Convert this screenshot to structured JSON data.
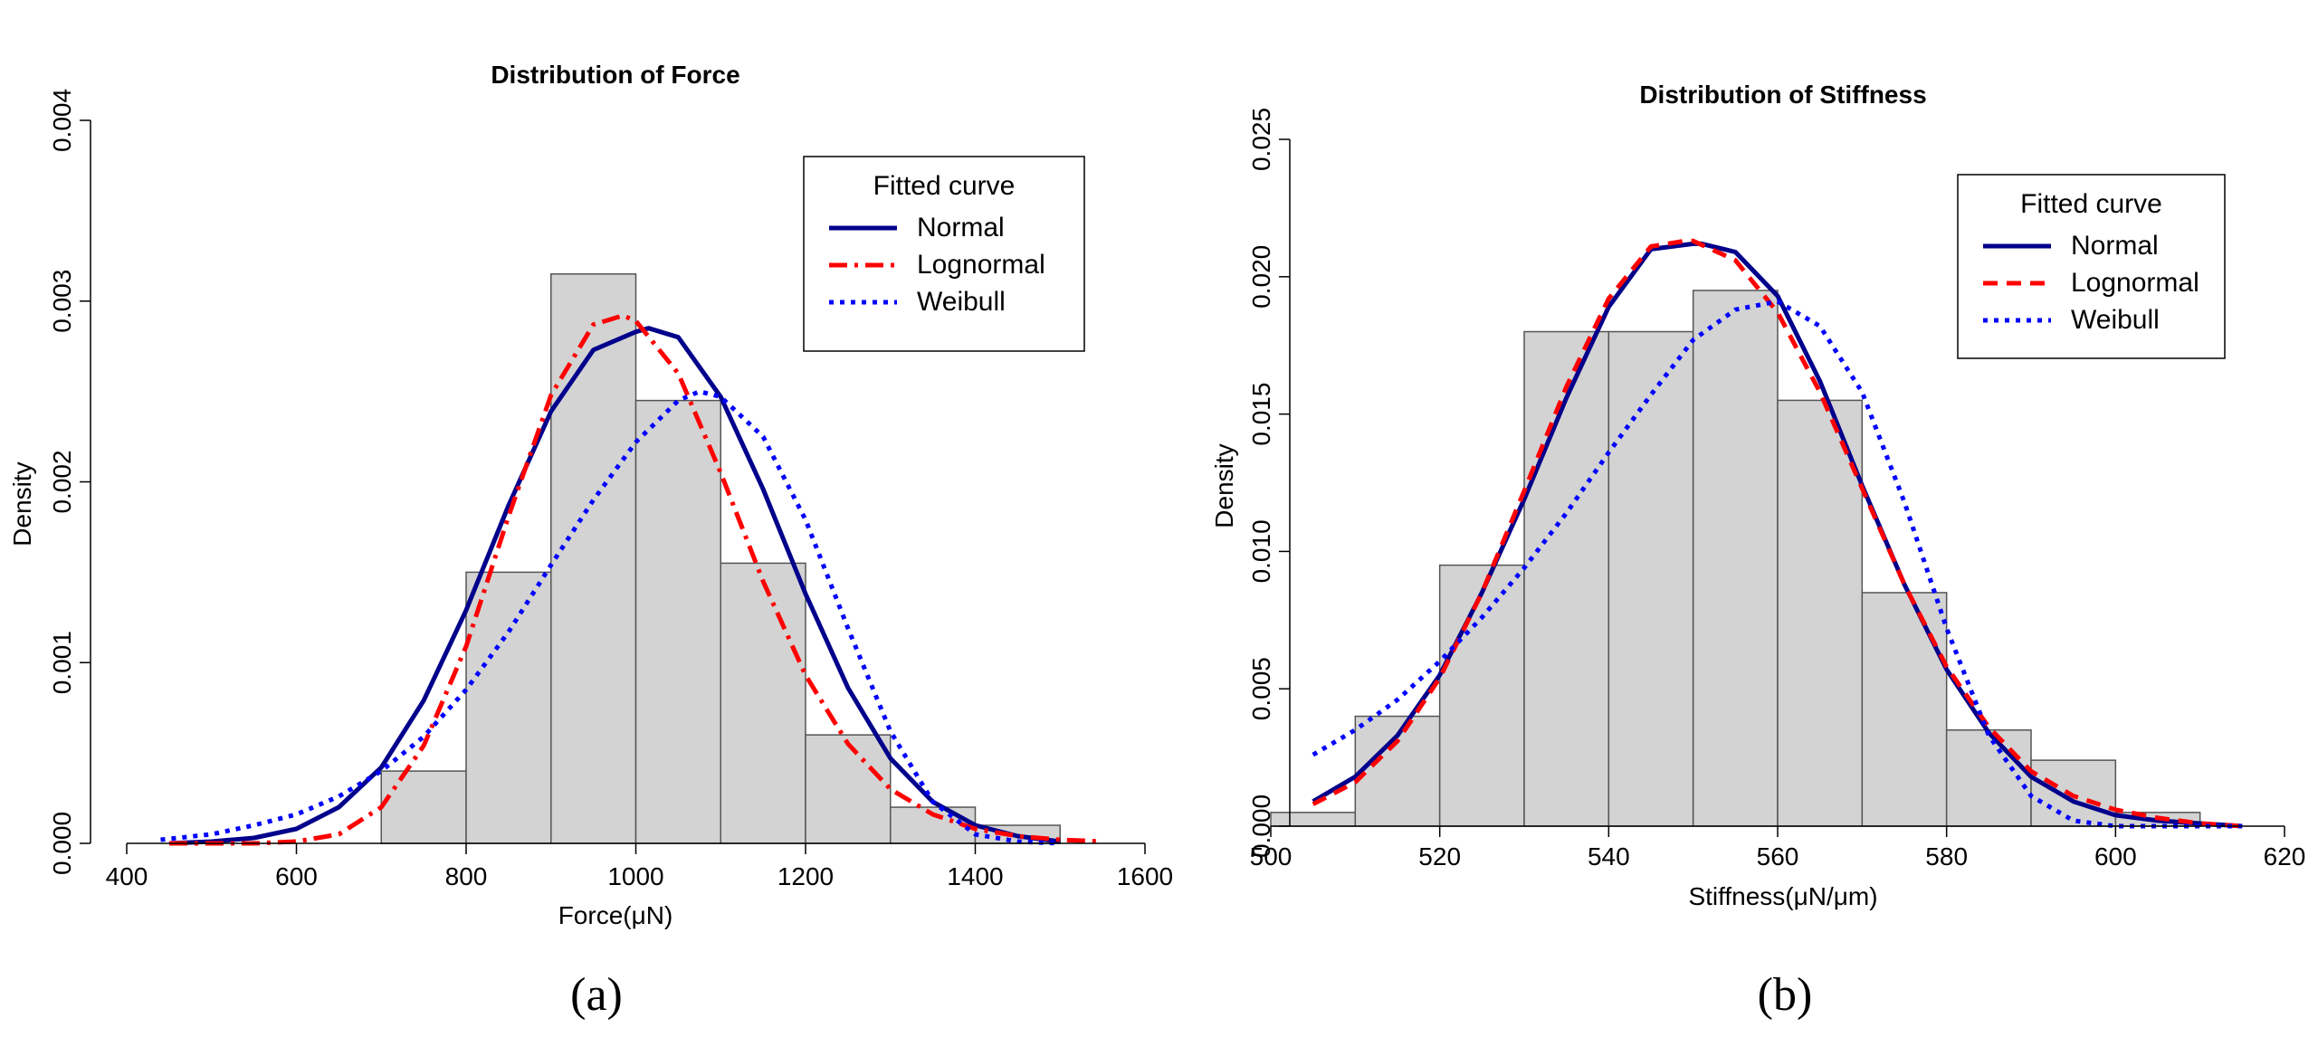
{
  "chart_data": [
    {
      "type": "histogram",
      "panel": "a",
      "title": "Distribution of Force",
      "xlabel": "Force(μN)",
      "ylabel": "Density",
      "xlim": [
        400,
        1600
      ],
      "ylim": [
        0,
        0.004
      ],
      "xticks": [
        400,
        600,
        800,
        1000,
        1200,
        1400,
        1600
      ],
      "xtick_labels": [
        "400",
        "600",
        "800",
        "1000",
        "1200",
        "1400",
        "1600"
      ],
      "yticks": [
        0,
        0.001,
        0.002,
        0.003,
        0.004
      ],
      "ytick_labels": [
        "0.000",
        "0.001",
        "0.002",
        "0.003",
        "0.004"
      ],
      "bins": [
        {
          "from": 700,
          "to": 800,
          "density": 0.0004
        },
        {
          "from": 800,
          "to": 900,
          "density": 0.0015
        },
        {
          "from": 900,
          "to": 1000,
          "density": 0.00315
        },
        {
          "from": 1000,
          "to": 1100,
          "density": 0.00245
        },
        {
          "from": 1100,
          "to": 1200,
          "density": 0.00155
        },
        {
          "from": 1200,
          "to": 1300,
          "density": 0.0006
        },
        {
          "from": 1300,
          "to": 1400,
          "density": 0.0002
        },
        {
          "from": 1400,
          "to": 1500,
          "density": 0.0001
        }
      ],
      "legend": {
        "title": "Fitted curve",
        "position": "top-right",
        "entries": [
          "Normal",
          "Lognormal",
          "Weibull"
        ]
      },
      "series": [
        {
          "name": "Normal",
          "color": "#00008b",
          "dash": "solid",
          "x": [
            450,
            500,
            550,
            600,
            650,
            700,
            750,
            800,
            850,
            900,
            950,
            1000,
            1015,
            1050,
            1100,
            1150,
            1200,
            1250,
            1300,
            1350,
            1400,
            1450,
            1500
          ],
          "y": [
            0,
            1e-05,
            3e-05,
            8e-05,
            0.0002,
            0.00042,
            0.00079,
            0.00129,
            0.00187,
            0.00239,
            0.00273,
            0.00283,
            0.00285,
            0.0028,
            0.00247,
            0.00196,
            0.00138,
            0.00086,
            0.00047,
            0.00023,
            0.0001,
            4e-05,
            1e-05
          ]
        },
        {
          "name": "Lognormal",
          "color": "#ff0000",
          "dash": "dashdot",
          "x": [
            450,
            500,
            550,
            600,
            650,
            700,
            750,
            800,
            850,
            900,
            950,
            985,
            1000,
            1050,
            1100,
            1150,
            1200,
            1250,
            1300,
            1350,
            1400,
            1450,
            1500,
            1550
          ],
          "y": [
            0,
            0,
            0,
            1e-05,
            5e-05,
            0.0002,
            0.00054,
            0.00109,
            0.00181,
            0.00248,
            0.00287,
            0.00292,
            0.00289,
            0.0026,
            0.00205,
            0.00145,
            0.00093,
            0.00055,
            0.0003,
            0.00016,
            8e-05,
            4e-05,
            2e-05,
            1e-05
          ]
        },
        {
          "name": "Weibull",
          "color": "#0000ff",
          "dash": "dotted",
          "x": [
            440,
            500,
            550,
            600,
            650,
            700,
            750,
            800,
            850,
            900,
            950,
            1000,
            1050,
            1075,
            1100,
            1150,
            1200,
            1250,
            1300,
            1350,
            1400,
            1450,
            1500
          ],
          "y": [
            2e-05,
            5e-05,
            0.0001,
            0.00016,
            0.00026,
            0.0004,
            0.00059,
            0.00085,
            0.00117,
            0.00154,
            0.0019,
            0.00222,
            0.00245,
            0.0025,
            0.00247,
            0.00225,
            0.00179,
            0.00119,
            0.00062,
            0.00023,
            5e-05,
            1e-05,
            0
          ]
        }
      ]
    },
    {
      "type": "histogram",
      "panel": "b",
      "title": "Distribution of Stiffness",
      "xlabel": "Stiffness(μN/μm)",
      "ylabel": "Density",
      "xlim": [
        500,
        620
      ],
      "ylim": [
        0,
        0.025
      ],
      "xticks": [
        500,
        520,
        540,
        560,
        580,
        600,
        620
      ],
      "xtick_labels": [
        "500",
        "520",
        "540",
        "560",
        "580",
        "600",
        "620"
      ],
      "yticks": [
        0,
        0.005,
        0.01,
        0.015,
        0.02,
        0.025
      ],
      "ytick_labels": [
        "0.000",
        "0.005",
        "0.010",
        "0.015",
        "0.020",
        "0.025"
      ],
      "bins": [
        {
          "from": 500,
          "to": 510,
          "density": 0.0005
        },
        {
          "from": 510,
          "to": 520,
          "density": 0.004
        },
        {
          "from": 520,
          "to": 530,
          "density": 0.0095
        },
        {
          "from": 530,
          "to": 540,
          "density": 0.018
        },
        {
          "from": 540,
          "to": 550,
          "density": 0.018
        },
        {
          "from": 550,
          "to": 560,
          "density": 0.0195
        },
        {
          "from": 560,
          "to": 570,
          "density": 0.0155
        },
        {
          "from": 570,
          "to": 580,
          "density": 0.0085
        },
        {
          "from": 580,
          "to": 590,
          "density": 0.0035
        },
        {
          "from": 590,
          "to": 600,
          "density": 0.0024
        },
        {
          "from": 600,
          "to": 610,
          "density": 0.0005
        }
      ],
      "legend": {
        "title": "Fitted curve",
        "position": "top-right",
        "entries": [
          "Normal",
          "Lognormal",
          "Weibull"
        ]
      },
      "series": [
        {
          "name": "Normal",
          "color": "#00008b",
          "dash": "solid",
          "x": [
            505,
            510,
            515,
            520,
            525,
            530,
            535,
            540,
            545,
            550,
            551,
            555,
            560,
            565,
            570,
            575,
            580,
            585,
            590,
            595,
            600,
            605,
            610,
            615
          ],
          "y": [
            0.0009,
            0.0018,
            0.0033,
            0.0055,
            0.0085,
            0.0119,
            0.0156,
            0.0189,
            0.021,
            0.0212,
            0.0212,
            0.0209,
            0.0193,
            0.0162,
            0.0124,
            0.0088,
            0.0057,
            0.0034,
            0.0018,
            0.0009,
            0.0004,
            0.0002,
            0.0001,
            0
          ]
        },
        {
          "name": "Lognormal",
          "color": "#ff0000",
          "dash": "dashed",
          "x": [
            505,
            510,
            515,
            520,
            525,
            530,
            535,
            540,
            545,
            549,
            550,
            555,
            560,
            565,
            570,
            575,
            580,
            585,
            590,
            595,
            600,
            605,
            610,
            615
          ],
          "y": [
            0.0008,
            0.0016,
            0.0031,
            0.0054,
            0.0085,
            0.0122,
            0.016,
            0.0192,
            0.0211,
            0.0213,
            0.0213,
            0.0206,
            0.0187,
            0.0158,
            0.0123,
            0.0088,
            0.0058,
            0.0036,
            0.002,
            0.0011,
            0.0006,
            0.0003,
            0.0001,
            0
          ]
        },
        {
          "name": "Weibull",
          "color": "#0000ff",
          "dash": "dotted",
          "x": [
            505,
            510,
            515,
            520,
            525,
            530,
            535,
            540,
            545,
            550,
            555,
            560,
            565,
            570,
            575,
            580,
            585,
            590,
            595,
            600,
            605,
            610,
            615
          ],
          "y": [
            0.0026,
            0.0035,
            0.0046,
            0.006,
            0.0076,
            0.0094,
            0.0114,
            0.0136,
            0.0157,
            0.0177,
            0.0188,
            0.0191,
            0.0182,
            0.0158,
            0.0118,
            0.0072,
            0.0033,
            0.0011,
            0.0002,
            0,
            0,
            0,
            0
          ]
        }
      ]
    }
  ],
  "panel_labels": {
    "a": "(a)",
    "b": "(b)"
  }
}
